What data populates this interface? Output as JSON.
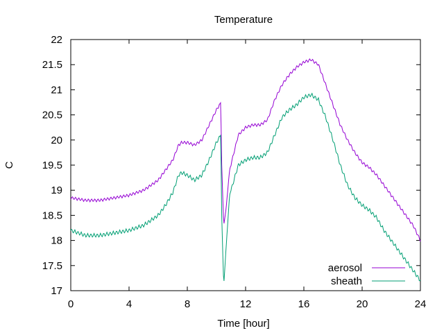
{
  "chart_data": {
    "type": "line",
    "title": "Temperature",
    "xlabel": "Time [hour]",
    "ylabel": "C",
    "xlim": [
      0,
      24
    ],
    "ylim": [
      17,
      22
    ],
    "xticks": [
      0,
      4,
      8,
      12,
      16,
      20,
      24
    ],
    "yticks": [
      17,
      17.5,
      18,
      18.5,
      19,
      19.5,
      20,
      20.5,
      21,
      21.5,
      22
    ],
    "grid": false,
    "legend_position": "bottom-right",
    "series": [
      {
        "name": "aerosol",
        "color": "#9400d3",
        "noise": 0.06,
        "x": [
          0,
          1,
          2,
          3,
          4,
          5,
          6,
          6.5,
          7,
          7.4,
          7.6,
          8,
          8.5,
          9,
          9.5,
          10,
          10.3,
          10.35,
          10.5,
          10.65,
          10.9,
          11.5,
          12,
          12.5,
          13,
          13.5,
          14,
          14.5,
          15,
          15.5,
          16,
          16.5,
          17,
          17.5,
          18,
          18.5,
          19,
          19.5,
          20,
          20.5,
          21,
          21.5,
          22,
          22.5,
          23,
          23.5,
          24
        ],
        "values": [
          18.85,
          18.8,
          18.8,
          18.85,
          18.9,
          19.0,
          19.2,
          19.4,
          19.6,
          19.9,
          19.95,
          19.95,
          19.9,
          20.0,
          20.3,
          20.6,
          20.75,
          19.6,
          18.3,
          18.6,
          19.4,
          20.1,
          20.25,
          20.3,
          20.3,
          20.4,
          20.8,
          21.1,
          21.3,
          21.45,
          21.55,
          21.6,
          21.5,
          21.1,
          20.7,
          20.3,
          20.0,
          19.75,
          19.55,
          19.45,
          19.3,
          19.1,
          18.9,
          18.7,
          18.5,
          18.3,
          18.0
        ]
      },
      {
        "name": "sheath",
        "color": "#009e73",
        "noise": 0.08,
        "x": [
          0,
          1,
          2,
          3,
          4,
          5,
          6,
          6.5,
          7,
          7.4,
          7.6,
          8,
          8.5,
          9,
          9.5,
          10,
          10.3,
          10.35,
          10.5,
          10.65,
          10.9,
          11.5,
          12,
          12.5,
          13,
          13.5,
          14,
          14.5,
          15,
          15.5,
          16,
          16.5,
          17,
          17.5,
          18,
          18.5,
          19,
          19.5,
          20,
          20.5,
          21,
          21.5,
          22,
          22.5,
          23,
          23.5,
          24
        ],
        "values": [
          18.2,
          18.1,
          18.1,
          18.15,
          18.2,
          18.3,
          18.5,
          18.7,
          18.95,
          19.3,
          19.35,
          19.3,
          19.2,
          19.3,
          19.6,
          19.95,
          20.1,
          18.6,
          17.1,
          17.8,
          18.9,
          19.5,
          19.6,
          19.65,
          19.65,
          19.75,
          20.1,
          20.45,
          20.6,
          20.7,
          20.85,
          20.9,
          20.8,
          20.45,
          20.0,
          19.5,
          19.1,
          18.85,
          18.7,
          18.6,
          18.45,
          18.2,
          18.0,
          17.8,
          17.6,
          17.4,
          17.2
        ]
      }
    ]
  }
}
